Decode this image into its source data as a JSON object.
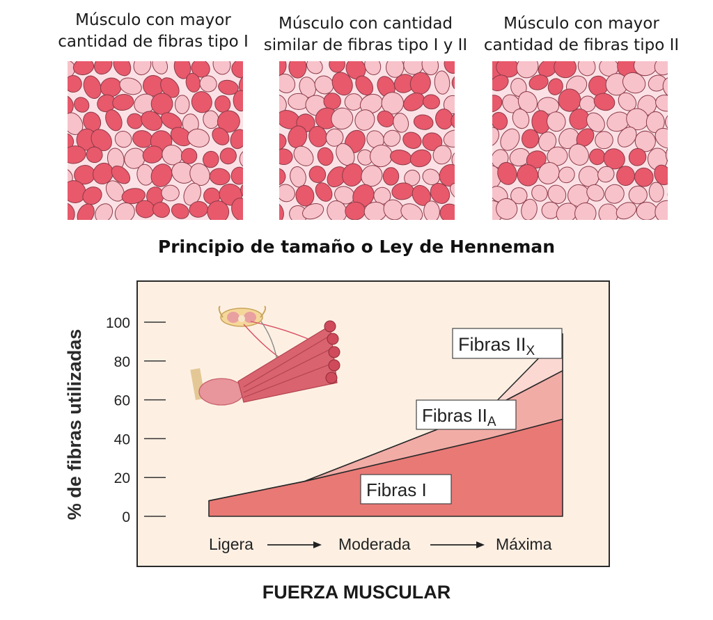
{
  "panels": [
    {
      "line1": "Músculo con mayor",
      "line2": "cantidad de fibras tipo I",
      "dark_ratio": 0.68
    },
    {
      "line1": "Músculo con cantidad",
      "line2": "similar de fibras tipo I y II",
      "dark_ratio": 0.5
    },
    {
      "line1": "Músculo con mayor",
      "line2": "cantidad de fibras tipo II",
      "dark_ratio": 0.3
    }
  ],
  "colors": {
    "fiber_dark": "#e8596b",
    "fiber_light": "#f7c2ca",
    "tissue_bg": "#fbe1e5",
    "chart_bg": "#fdf0e3",
    "area_I": "#e97975",
    "area_IIA": "#f2aca6",
    "area_IIX": "#fbd8d2"
  },
  "main_title": "Principio de tamaño o Ley de Henneman",
  "chart_data": {
    "type": "area",
    "ylabel": "% de fibras utilizadas",
    "xlabel": "FUERZA MUSCULAR",
    "ylim": [
      0,
      100
    ],
    "yticks": [
      0,
      20,
      40,
      60,
      80,
      100
    ],
    "x_categories": [
      "Ligera",
      "Moderada",
      "Máxima"
    ],
    "x": [
      0,
      0.27,
      0.79,
      1.0
    ],
    "series": [
      {
        "name": "Fibras I",
        "upper": [
          8,
          18,
          40,
          50
        ]
      },
      {
        "name": "Fibras IIA",
        "upper": [
          8,
          18,
          55,
          75
        ]
      },
      {
        "name": "Fibras IIX",
        "upper": [
          8,
          18,
          55,
          94
        ]
      }
    ],
    "labels": [
      {
        "base": "Fibras II",
        "sub": "X"
      },
      {
        "base": "Fibras II",
        "sub": "A"
      },
      {
        "base": "Fibras I",
        "sub": ""
      }
    ]
  }
}
